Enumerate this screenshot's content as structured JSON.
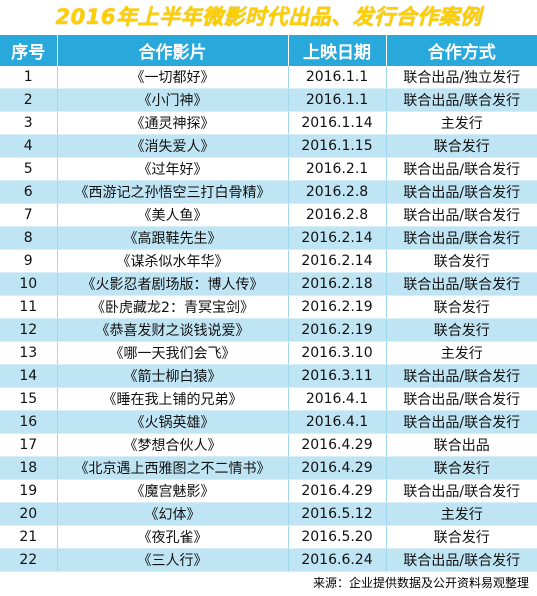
{
  "title": "2016年上半年微影时代出品、发行合作案例",
  "headers": [
    "序号",
    "合作影片",
    "上映日期",
    "合作方式"
  ],
  "rows": [
    [
      "1",
      "《一切都好》",
      "2016.1.1",
      "联合出品/独立发行"
    ],
    [
      "2",
      "《小门神》",
      "2016.1.1",
      "联合出品/联合发行"
    ],
    [
      "3",
      "《通灵神探》",
      "2016.1.14",
      "主发行"
    ],
    [
      "4",
      "《消失爱人》",
      "2016.1.15",
      "联合发行"
    ],
    [
      "5",
      "《过年好》",
      "2016.2.1",
      "联合出品/联合发行"
    ],
    [
      "6",
      "《西游记之孙悟空三打白骨精》",
      "2016.2.8",
      "联合出品/联合发行"
    ],
    [
      "7",
      "《美人鱼》",
      "2016.2.8",
      "联合出品/联合发行"
    ],
    [
      "8",
      "《高跟鞋先生》",
      "2016.2.14",
      "联合出品/联合发行"
    ],
    [
      "9",
      "《谋杀似水年华》",
      "2016.2.14",
      "联合发行"
    ],
    [
      "10",
      "《火影忍者剧场版：博人传》",
      "2016.2.18",
      "联合出品/联合发行"
    ],
    [
      "11",
      "《卧虎藏龙2：青冥宝剑》",
      "2016.2.19",
      "联合发行"
    ],
    [
      "12",
      "《恭喜发财之谈钱说爱》",
      "2016.2.19",
      "联合发行"
    ],
    [
      "13",
      "《哪一天我们会飞》",
      "2016.3.10",
      "主发行"
    ],
    [
      "14",
      "《箭士柳白猿》",
      "2016.3.11",
      "联合出品/联合发行"
    ],
    [
      "15",
      "《睡在我上铺的兄弟》",
      "2016.4.1",
      "联合出品/联合发行"
    ],
    [
      "16",
      "《火锅英雄》",
      "2016.4.1",
      "联合出品/联合发行"
    ],
    [
      "17",
      "《梦想合伙人》",
      "2016.4.29",
      "联合出品"
    ],
    [
      "18",
      "《北京遇上西雅图之不二情书》",
      "2016.4.29",
      "联合发行"
    ],
    [
      "19",
      "《魔宫魅影》",
      "2016.4.29",
      "联合出品/联合发行"
    ],
    [
      "20",
      "《幻体》",
      "2016.5.12",
      "主发行"
    ],
    [
      "21",
      "《夜孔雀》",
      "2016.5.20",
      "联合发行"
    ],
    [
      "22",
      "《三人行》",
      "2016.6.24",
      "联合出品/联合发行"
    ]
  ],
  "source": "来源：企业提供数据及公开资料易观整理",
  "colors": {
    "title": "#ffd000",
    "header_bg": "#29a8dc",
    "stripe": "#bfe5f5"
  }
}
